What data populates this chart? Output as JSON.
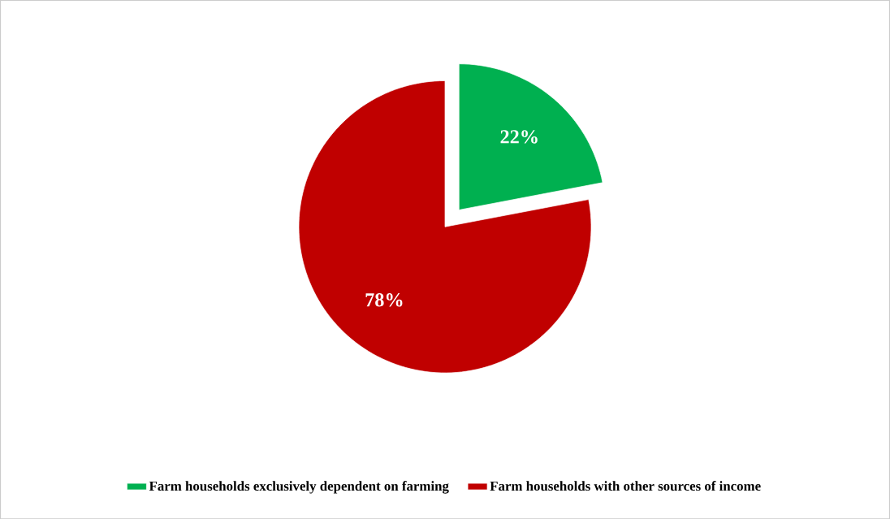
{
  "chart_data": {
    "type": "pie",
    "categories": [
      "Farm households exclusively dependent on farming",
      "Farm households with other sources of income"
    ],
    "values": [
      22,
      78
    ],
    "colors": [
      "#00b050",
      "#c00000"
    ],
    "value_labels": [
      "22%",
      "78%"
    ],
    "legend": "bottom"
  }
}
